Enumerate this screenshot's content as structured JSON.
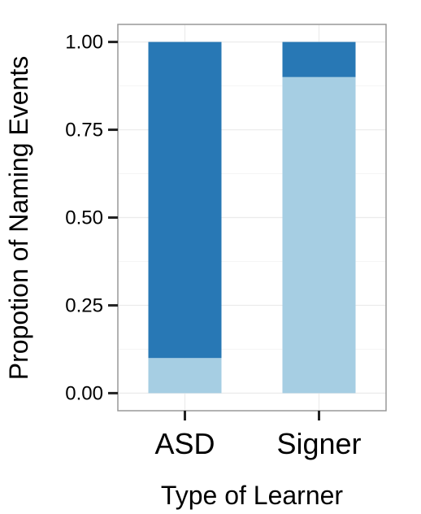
{
  "chart_data": {
    "type": "bar",
    "stacked": true,
    "categories": [
      "ASD",
      "Signer"
    ],
    "series": [
      {
        "values": [
          0.1,
          0.9
        ],
        "color": "#a6cee3"
      },
      {
        "values": [
          0.9,
          0.1
        ],
        "color": "#2878b5"
      }
    ],
    "xlabel": "Type of Learner",
    "ylabel": "Propotion of Naming Events",
    "ylim": [
      -0.05,
      1.05
    ],
    "yticks": [
      0.0,
      0.25,
      0.5,
      0.75,
      1.0
    ],
    "ytick_labels": [
      "0.00",
      "0.25",
      "0.50",
      "0.75",
      "1.00"
    ],
    "grid": true,
    "legend": "none"
  }
}
